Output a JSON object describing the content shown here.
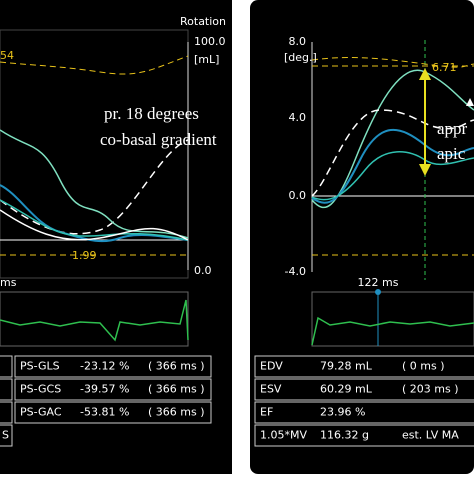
{
  "left_panel": {
    "corner_value": "54",
    "axis_title": "Rotation",
    "axis_top": "100.0",
    "axis_unit": "[mL]",
    "axis_bottom": "0.0",
    "annotation_lines": [
      "pr. 18 degrees",
      "co-basal gradient"
    ],
    "marker_value": "1.99",
    "time_label": "ms",
    "table": {
      "rows": [
        [
          "PS-GLS",
          "-23.12 %",
          "( 366 ms )"
        ],
        [
          "PS-GCS",
          "-39.57 %",
          "( 366 ms )"
        ],
        [
          "PS-GAC",
          "-53.81 %",
          "( 366 ms )"
        ]
      ],
      "footer": "S"
    }
  },
  "right_panel": {
    "axis_unit": "[deg.]",
    "axis_labels": [
      "8.0",
      "4.0",
      "0.0",
      "-4.0"
    ],
    "peak_value": "6.71",
    "annotation_lines": [
      "appr",
      "apic"
    ],
    "time_label": "122 ms",
    "table": {
      "rows": [
        [
          "EDV",
          "79.28 mL",
          "(   0 ms )"
        ],
        [
          "ESV",
          "60.29 mL",
          "( 203 ms )"
        ],
        [
          "EF",
          "23.96 %",
          ""
        ],
        [
          "1.05*MV",
          "116.32 g",
          "est. LV MA"
        ]
      ]
    }
  }
}
